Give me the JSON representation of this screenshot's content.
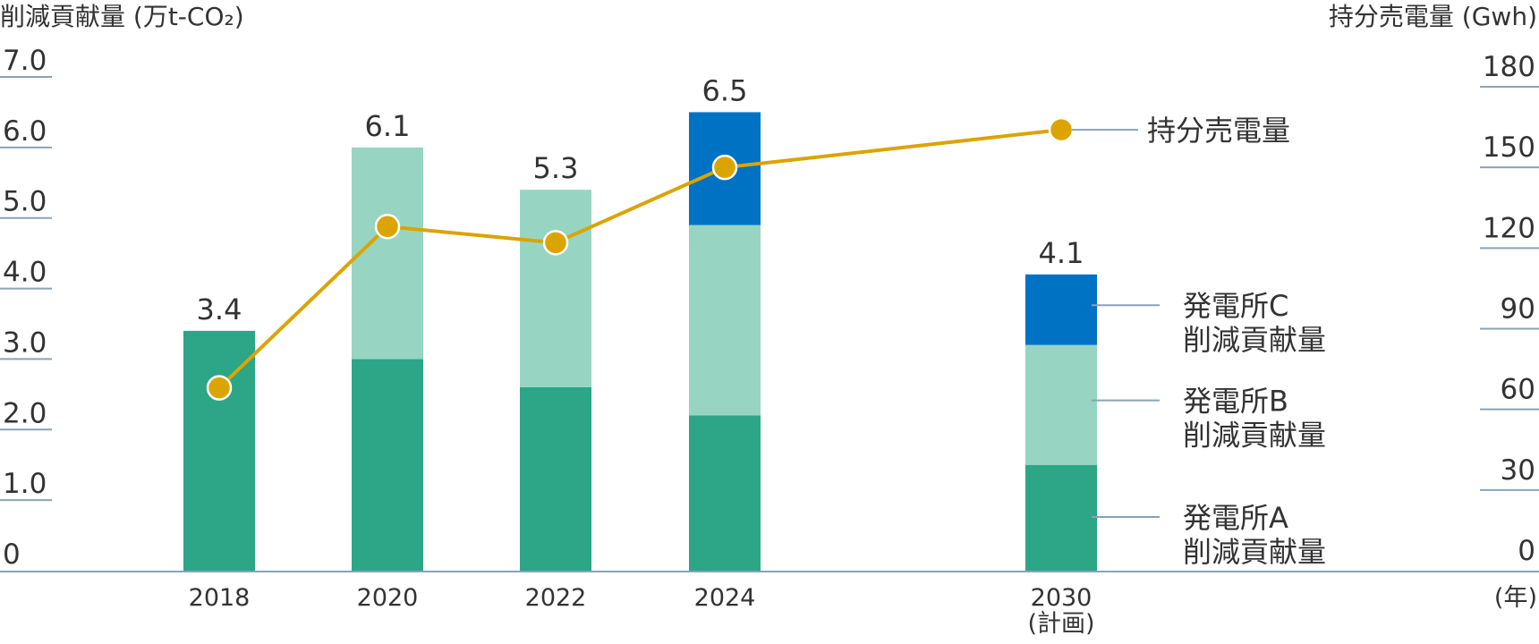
{
  "chart_data": {
    "type": "bar",
    "categories": [
      "2018",
      "2020",
      "2022",
      "2024",
      "2030"
    ],
    "category_sublabels": [
      "",
      "",
      "",
      "",
      "(計画)"
    ],
    "x_unit_label": "(年)",
    "left_axis": {
      "title": "削減貢献量 (万t-CO₂)",
      "ylim": [
        0,
        7.0
      ],
      "ticks": [
        "0",
        "1.0",
        "2.0",
        "3.0",
        "4.0",
        "5.0",
        "6.0",
        "7.0"
      ],
      "tick_values": [
        0,
        1,
        2,
        3,
        4,
        5,
        6,
        7
      ]
    },
    "right_axis": {
      "title": "持分売電量 (Gwh)",
      "ylim": [
        0,
        180
      ],
      "ticks": [
        "0",
        "30",
        "60",
        "90",
        "120",
        "150",
        "180"
      ],
      "tick_values": [
        0,
        30,
        60,
        90,
        120,
        150,
        180
      ]
    },
    "series": [
      {
        "name": "発電所A 削減貢献量",
        "legend_lines": [
          "発電所A",
          "削減貢献量"
        ],
        "kind": "bar",
        "color": "#2ca686",
        "values": [
          3.4,
          3.0,
          2.6,
          2.2,
          1.5
        ]
      },
      {
        "name": "発電所B 削減貢献量",
        "legend_lines": [
          "発電所B",
          "削減貢献量"
        ],
        "kind": "bar",
        "color": "#97d5c2",
        "values": [
          0,
          3.0,
          2.8,
          2.7,
          1.7
        ]
      },
      {
        "name": "発電所C 削減貢献量",
        "legend_lines": [
          "発電所C",
          "削減貢献量"
        ],
        "kind": "bar",
        "color": "#0072c4",
        "values": [
          0,
          0,
          0,
          1.6,
          1.0
        ]
      },
      {
        "name": "持分売電量",
        "legend_lines": [
          "持分売電量"
        ],
        "kind": "line",
        "axis": "right",
        "color": "#dba400",
        "values": [
          68,
          128,
          122,
          150,
          164
        ]
      }
    ],
    "totals": [
      "3.4",
      "6.1",
      "5.3",
      "6.5",
      "4.1"
    ],
    "legend_placement": "right",
    "grid": false
  }
}
